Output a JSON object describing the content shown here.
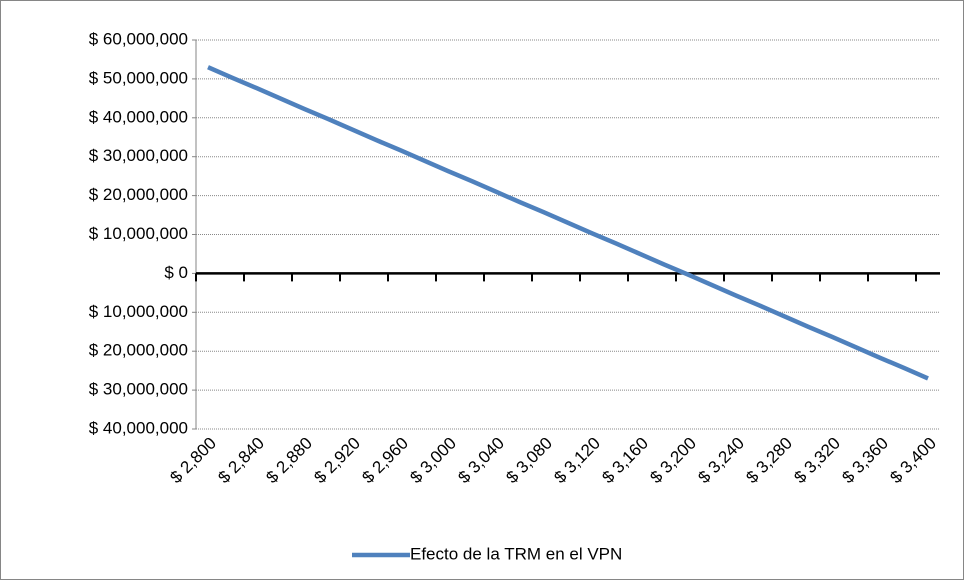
{
  "chart_data": {
    "type": "line",
    "categories": [
      "$ 2,800",
      null,
      "$ 2,840",
      null,
      "$ 2,880",
      null,
      "$ 2,920",
      null,
      "$ 2,960",
      null,
      "$ 3,000",
      null,
      "$ 3,040",
      null,
      "$ 3,080",
      null,
      "$ 3,120",
      null,
      "$ 3,160",
      null,
      "$ 3,200",
      null,
      "$ 3,240",
      null,
      "$ 3,280",
      null,
      "$ 3,320",
      null,
      "$ 3,360",
      null,
      "$ 3,400"
    ],
    "series": [
      {
        "name": "Efecto de la TRM en el VPN",
        "color": "#4f81bd",
        "values": [
          53000000,
          50300000,
          47700000,
          45000000,
          42300000,
          39700000,
          37000000,
          34300000,
          31700000,
          29000000,
          26300000,
          23700000,
          21000000,
          18300000,
          15700000,
          13000000,
          10300000,
          7700000,
          5000000,
          2300000,
          -300000,
          -3000000,
          -5700000,
          -8300000,
          -11000000,
          -13700000,
          -16300000,
          -19000000,
          -21700000,
          -24300000,
          -27000000
        ]
      }
    ],
    "ylim": [
      -40000000,
      60000000
    ],
    "yticks": [
      {
        "value": -40000000,
        "label": "$ 40,000,000"
      },
      {
        "value": -30000000,
        "label": "$ 30,000,000"
      },
      {
        "value": -20000000,
        "label": "$ 20,000,000"
      },
      {
        "value": -10000000,
        "label": "$ 10,000,000"
      },
      {
        "value": 0,
        "label": "$ 0"
      },
      {
        "value": 10000000,
        "label": "$ 10,000,000"
      },
      {
        "value": 20000000,
        "label": "$ 20,000,000"
      },
      {
        "value": 30000000,
        "label": "$ 30,000,000"
      },
      {
        "value": 40000000,
        "label": "$ 40,000,000"
      },
      {
        "value": 50000000,
        "label": "$ 50,000,000"
      },
      {
        "value": 60000000,
        "label": "$ 60,000,000"
      }
    ],
    "negative_tick_color": "#ff0000",
    "grid": true,
    "legend": "bottom"
  }
}
